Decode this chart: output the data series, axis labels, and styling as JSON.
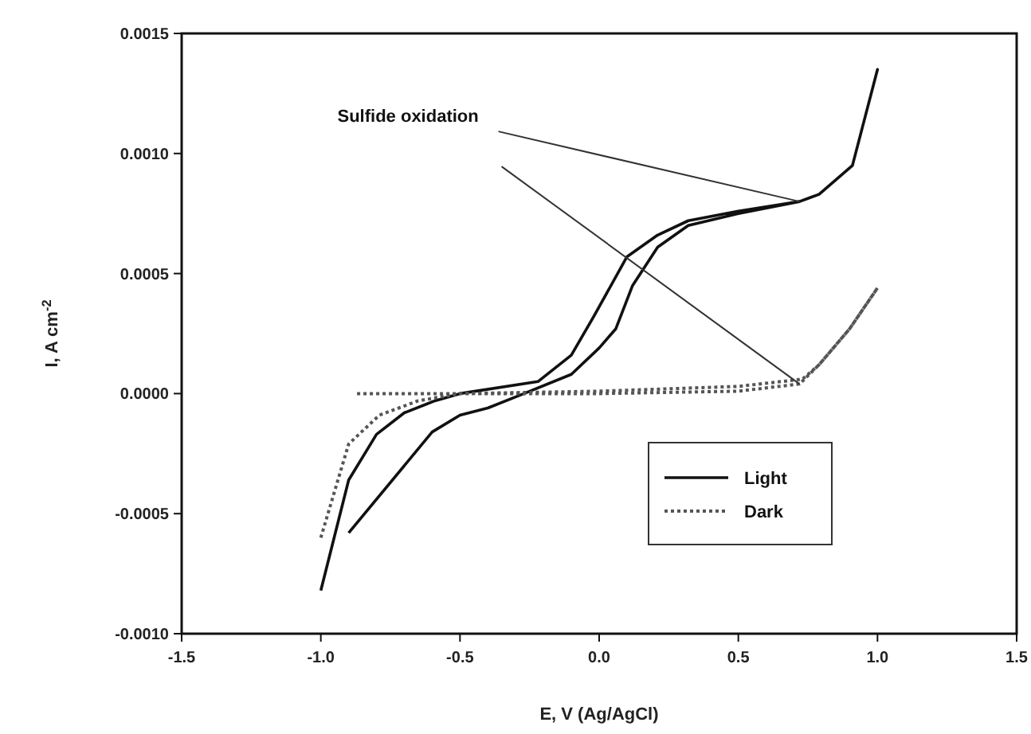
{
  "chart_data": {
    "type": "line",
    "xlabel": "E, V (Ag/AgCl)",
    "ylabel": "I, A cm$^{-2}$",
    "xlim": [
      -1.5,
      1.5
    ],
    "xticks": [
      {
        "value": -1.5,
        "label": "-1.5"
      },
      {
        "value": -1,
        "label": "-1.0"
      },
      {
        "value": -0.5,
        "label": "-0.5"
      },
      {
        "value": 0,
        "label": "0.0"
      },
      {
        "value": 0.5,
        "label": "0.5"
      },
      {
        "value": 1,
        "label": "1.0"
      },
      {
        "value": 1.5,
        "label": "1.5"
      }
    ],
    "ylim": [
      -0.001,
      0.0015
    ],
    "yticks": [
      {
        "value": -0.001,
        "label": "-0.0010"
      },
      {
        "value": -0.0005,
        "label": "-0.0005"
      },
      {
        "value": 0,
        "label": "0.0000"
      },
      {
        "value": 0.0005,
        "label": "0.0005"
      },
      {
        "value": 0.001,
        "label": "0.0010"
      },
      {
        "value": 0.0015,
        "label": "0.0015"
      }
    ],
    "grid": false,
    "legend": "bottom right",
    "marker": "none",
    "annotations": [
      {
        "text": "Sulfide oxidation",
        "x": 0.72,
        "y": 0.0008
      }
    ],
    "series": [
      {
        "name": "Light",
        "color": "#111111",
        "line_style": "solid",
        "x": [
          -0.9,
          -0.6,
          -0.5,
          -0.4,
          -0.27,
          -0.1,
          0,
          0.06,
          0.12,
          0.21,
          0.32,
          0.5,
          0.72,
          0.79,
          0.91,
          1.0,
          0.91,
          0.79,
          0.72,
          0.5,
          0.32,
          0.21,
          0.1,
          -0.02,
          -0.1,
          -0.22,
          -0.5,
          -0.59,
          -0.7,
          -0.8,
          -0.9,
          -1.0
        ],
        "values": [
          -0.00058,
          -0.00016,
          -9e-05,
          -6e-05,
          0,
          8e-05,
          0.00019,
          0.00027,
          0.00045,
          0.00061,
          0.0007,
          0.00075,
          0.0008,
          0.00083,
          0.00095,
          0.00135,
          0.00095,
          0.00083,
          0.0008,
          0.00076,
          0.00072,
          0.00066,
          0.00057,
          0.00032,
          0.00016,
          5e-05,
          0,
          -3e-05,
          -8e-05,
          -0.00017,
          -0.00036,
          -0.00082
        ]
      },
      {
        "name": "Dark",
        "color": "#555555",
        "line_style": "dotted",
        "x": [
          -0.87,
          -0.5,
          0,
          0.5,
          0.72,
          0.79,
          0.9,
          1.0,
          0.9,
          0.79,
          0.73,
          0.5,
          0,
          -0.5,
          -0.65,
          -0.79,
          -0.9,
          -1.0
        ],
        "values": [
          0,
          0,
          0,
          1e-05,
          4e-05,
          0.00012,
          0.00027,
          0.00044,
          0.00027,
          0.00012,
          6e-05,
          3e-05,
          1e-05,
          0,
          -3e-05,
          -9e-05,
          -0.00021,
          -0.0006
        ]
      }
    ]
  }
}
